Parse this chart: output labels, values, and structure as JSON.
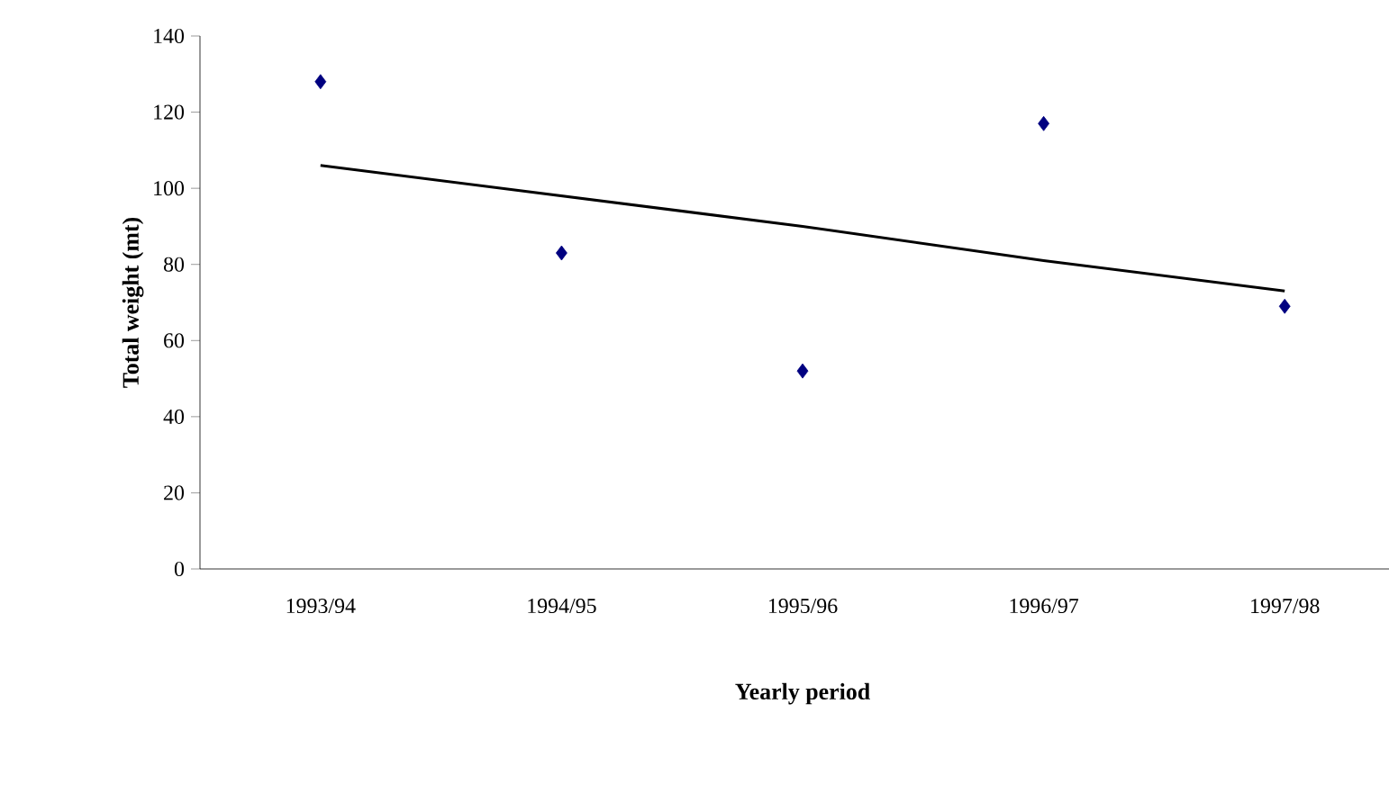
{
  "chart_data": {
    "type": "scatter",
    "xlabel": "Yearly period",
    "ylabel": "Total weight (mt)",
    "categories": [
      "1993/94",
      "1994/95",
      "1995/96",
      "1996/97",
      "1997/98"
    ],
    "series": [
      {
        "color": "#000080",
        "marker": "diamond",
        "values": [
          128,
          83,
          52,
          117,
          69
        ]
      },
      {
        "type": "line",
        "color": "#000000",
        "marker": "none",
        "line_style": "solid",
        "values": [
          106,
          98,
          90,
          81,
          73
        ]
      }
    ],
    "ylim": [
      0,
      140
    ],
    "yticks": [
      0,
      20,
      40,
      60,
      80,
      100,
      120,
      140
    ],
    "grid": false
  }
}
